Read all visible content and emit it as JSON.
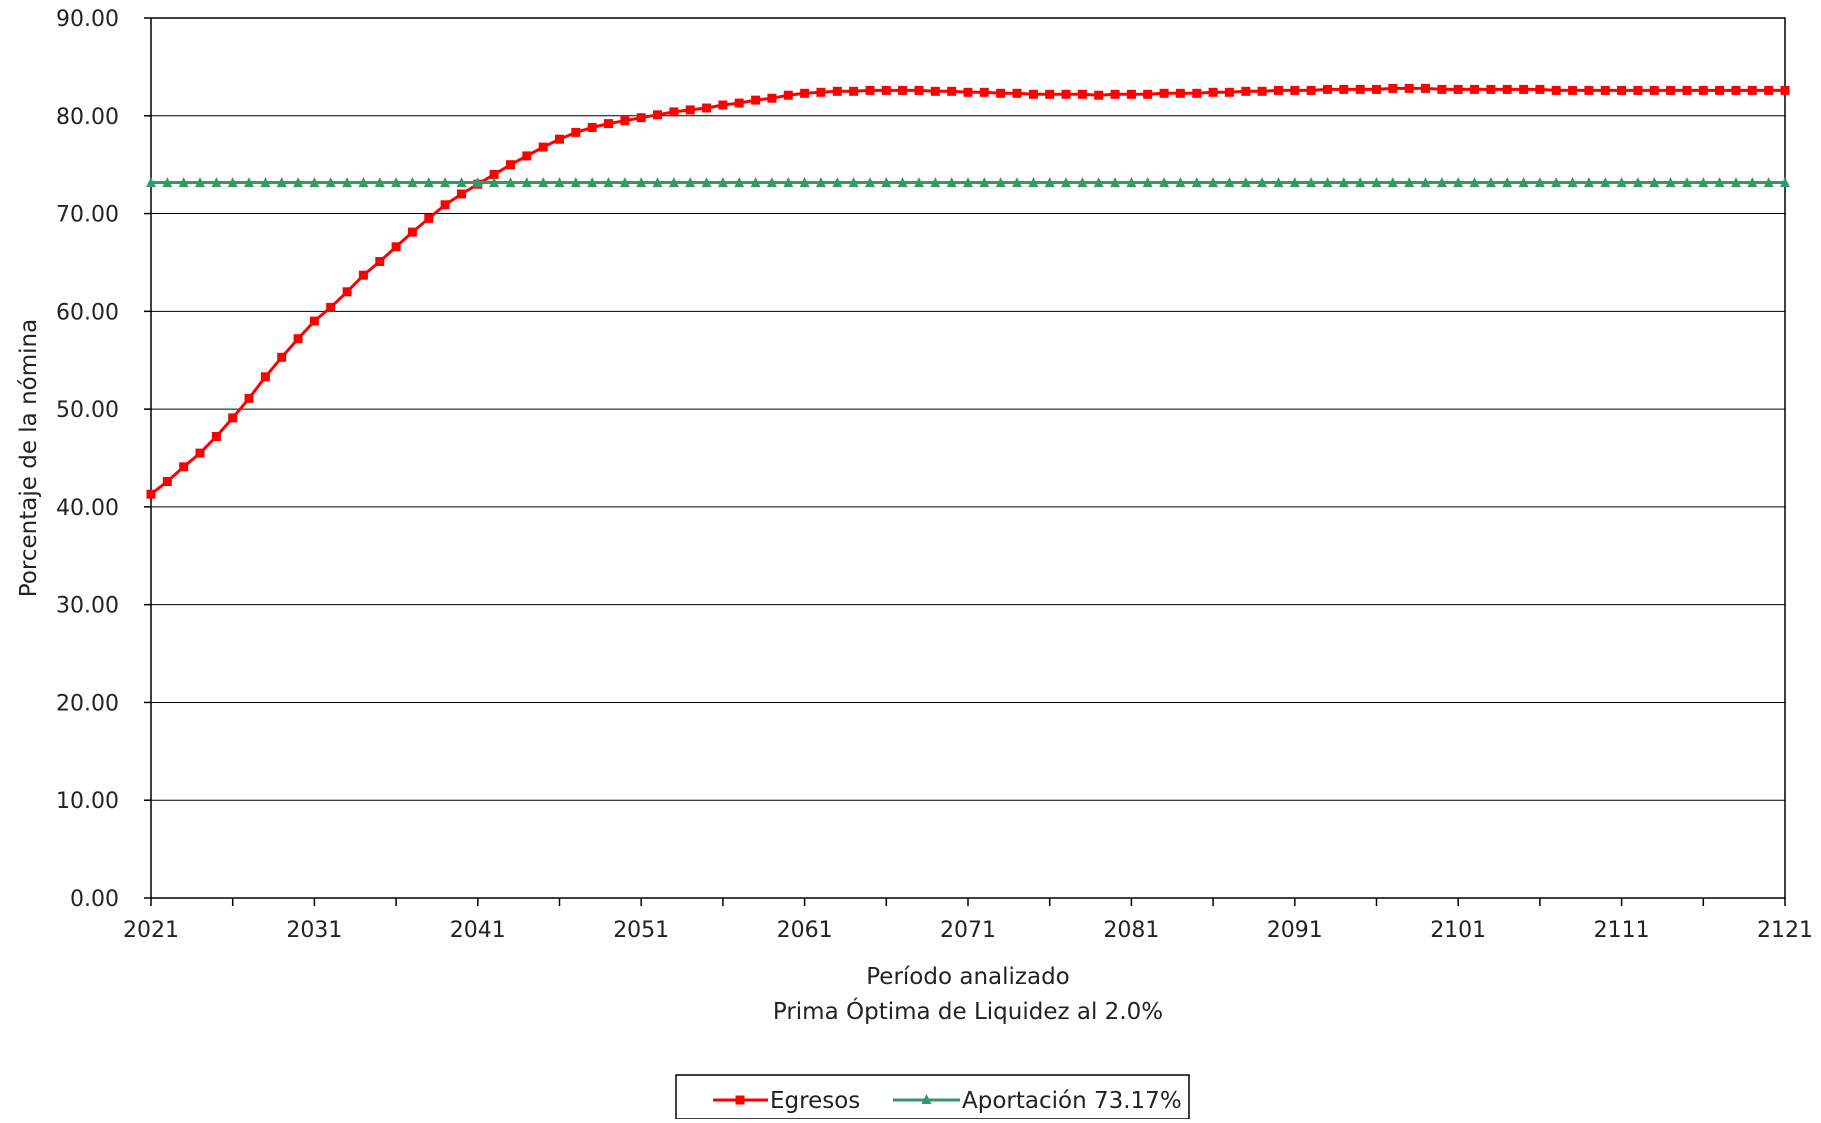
{
  "chart_data": {
    "type": "line",
    "title": "",
    "xlabel": "Período analizado",
    "subtitle": "Prima Óptima de Liquidez al 2.0%",
    "ylabel": "Porcentaje de la nómina",
    "xlim": [
      2021,
      2121
    ],
    "ylim": [
      0,
      90
    ],
    "x_ticks": [
      "2021",
      "2031",
      "2041",
      "2051",
      "2061",
      "2071",
      "2081",
      "2091",
      "2101",
      "2111",
      "2121"
    ],
    "y_ticks": [
      "0.00",
      "10.00",
      "20.00",
      "30.00",
      "40.00",
      "50.00",
      "60.00",
      "70.00",
      "80.00",
      "90.00"
    ],
    "grid": "horizontal",
    "legend": "bottom",
    "series": [
      {
        "name": "Egresos",
        "color": "#ff0000",
        "marker": "square",
        "x": [
          2021,
          2022,
          2023,
          2024,
          2025,
          2026,
          2027,
          2028,
          2029,
          2030,
          2031,
          2032,
          2033,
          2034,
          2035,
          2036,
          2037,
          2038,
          2039,
          2040,
          2041,
          2042,
          2043,
          2044,
          2045,
          2046,
          2047,
          2048,
          2049,
          2050,
          2051,
          2052,
          2053,
          2054,
          2055,
          2056,
          2057,
          2058,
          2059,
          2060,
          2061,
          2062,
          2063,
          2064,
          2065,
          2066,
          2067,
          2068,
          2069,
          2070,
          2071,
          2072,
          2073,
          2074,
          2075,
          2076,
          2077,
          2078,
          2079,
          2080,
          2081,
          2082,
          2083,
          2084,
          2085,
          2086,
          2087,
          2088,
          2089,
          2090,
          2091,
          2092,
          2093,
          2094,
          2095,
          2096,
          2097,
          2098,
          2099,
          2100,
          2101,
          2102,
          2103,
          2104,
          2105,
          2106,
          2107,
          2108,
          2109,
          2110,
          2111,
          2112,
          2113,
          2114,
          2115,
          2116,
          2117,
          2118,
          2119,
          2120,
          2121
        ],
        "values": [
          41.3,
          42.6,
          44.1,
          45.5,
          47.2,
          49.1,
          51.1,
          53.3,
          55.3,
          57.2,
          59.0,
          60.4,
          62.0,
          63.7,
          65.1,
          66.6,
          68.1,
          69.5,
          70.9,
          72.0,
          73.0,
          74.0,
          75.0,
          75.9,
          76.8,
          77.6,
          78.3,
          78.8,
          79.2,
          79.5,
          79.8,
          80.1,
          80.4,
          80.6,
          80.8,
          81.1,
          81.3,
          81.6,
          81.8,
          82.1,
          82.3,
          82.4,
          82.5,
          82.5,
          82.6,
          82.6,
          82.6,
          82.6,
          82.5,
          82.5,
          82.4,
          82.4,
          82.3,
          82.3,
          82.2,
          82.2,
          82.2,
          82.2,
          82.1,
          82.2,
          82.2,
          82.2,
          82.3,
          82.3,
          82.3,
          82.4,
          82.4,
          82.5,
          82.5,
          82.6,
          82.6,
          82.6,
          82.7,
          82.7,
          82.7,
          82.7,
          82.8,
          82.8,
          82.8,
          82.7,
          82.7,
          82.7,
          82.7,
          82.7,
          82.7,
          82.7,
          82.6,
          82.6,
          82.6,
          82.6,
          82.6,
          82.6,
          82.6,
          82.6,
          82.6,
          82.6,
          82.6,
          82.6,
          82.6,
          82.6,
          82.6
        ]
      },
      {
        "name": "Aportación 73.17%",
        "color": "#339966",
        "marker": "triangle",
        "constant": 73.17
      }
    ]
  }
}
